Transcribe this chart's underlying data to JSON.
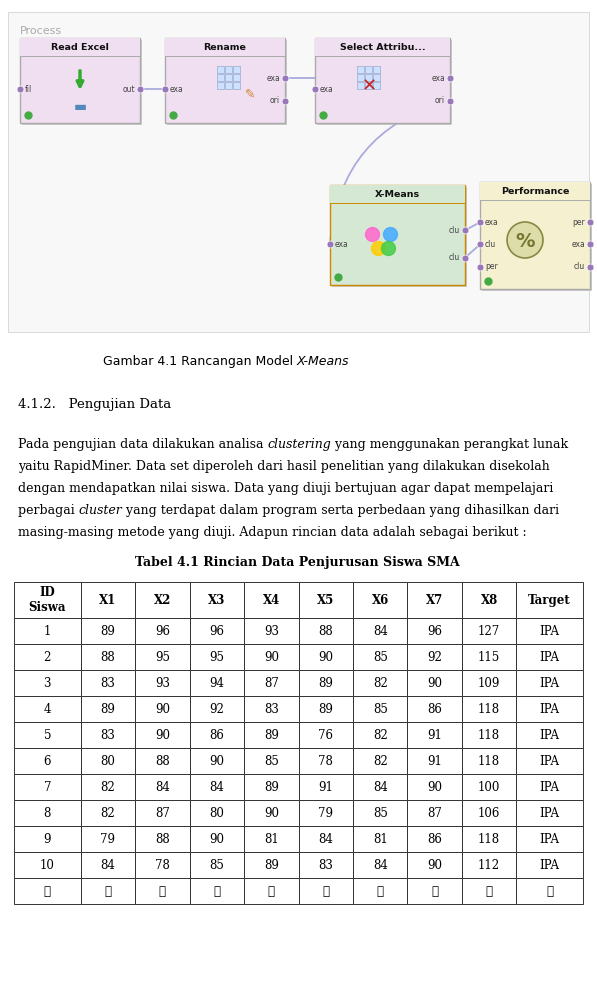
{
  "page_bg": "#ffffff",
  "process_label": "Process",
  "figure_caption_normal": "Gambar 4.1 Rancangan Model ",
  "figure_caption_italic": "X-Means",
  "section_title": "4.1.2.   Pengujian Data",
  "para_lines": [
    [
      [
        "Pada pengujian data dilakukan analisa ",
        false
      ],
      [
        "clustering",
        true
      ],
      [
        " yang menggunakan perangkat lunak",
        false
      ]
    ],
    [
      [
        "yaitu RapidMiner. Data set diperoleh dari hasil penelitian yang dilakukan disekolah",
        false
      ]
    ],
    [
      [
        "dengan mendapatkan nilai siswa. Data yang diuji bertujuan agar dapat mempelajari",
        false
      ]
    ],
    [
      [
        "perbagai ",
        false
      ],
      [
        "cluster",
        true
      ],
      [
        " yang terdapat dalam program serta perbedaan yang dihasilkan dari",
        false
      ]
    ],
    [
      [
        "masing-masing metode yang diuji. Adapun rincian data adalah sebagai berikut :",
        false
      ]
    ]
  ],
  "table_title": "Tabel 4.1 Rincian Data Penjurusan Siswa SMA",
  "table_headers": [
    "ID\nSiswa",
    "X1",
    "X2",
    "X3",
    "X4",
    "X5",
    "X6",
    "X7",
    "X8",
    "Target"
  ],
  "table_data": [
    [
      "1",
      "89",
      "96",
      "96",
      "93",
      "88",
      "84",
      "96",
      "127",
      "IPA"
    ],
    [
      "2",
      "88",
      "95",
      "95",
      "90",
      "90",
      "85",
      "92",
      "115",
      "IPA"
    ],
    [
      "3",
      "83",
      "93",
      "94",
      "87",
      "89",
      "82",
      "90",
      "109",
      "IPA"
    ],
    [
      "4",
      "89",
      "90",
      "92",
      "83",
      "89",
      "85",
      "86",
      "118",
      "IPA"
    ],
    [
      "5",
      "83",
      "90",
      "86",
      "89",
      "76",
      "82",
      "91",
      "118",
      "IPA"
    ],
    [
      "6",
      "80",
      "88",
      "90",
      "85",
      "78",
      "82",
      "91",
      "118",
      "IPA"
    ],
    [
      "7",
      "82",
      "84",
      "84",
      "89",
      "91",
      "84",
      "90",
      "100",
      "IPA"
    ],
    [
      "8",
      "82",
      "87",
      "80",
      "90",
      "79",
      "85",
      "87",
      "106",
      "IPA"
    ],
    [
      "9",
      "79",
      "88",
      "90",
      "81",
      "84",
      "81",
      "86",
      "118",
      "IPA"
    ],
    [
      "10",
      "84",
      "78",
      "85",
      "89",
      "83",
      "84",
      "90",
      "112",
      "IPA"
    ],
    [
      "⋮",
      "⋮",
      "⋮",
      "⋮",
      "⋮",
      "⋮",
      "⋮",
      "⋮",
      "⋮",
      "⋮"
    ]
  ],
  "col_weights": [
    1.1,
    0.9,
    0.9,
    0.9,
    0.9,
    0.9,
    0.9,
    0.9,
    0.9,
    1.1
  ],
  "diagram_bg": "#f0f0f0",
  "node_pink": "#f0dff0",
  "node_green": "#d4e8d4",
  "node_yellow": "#f5f0d0",
  "border_gray": "#aaaaaa",
  "border_orange": "#cc8800",
  "port_purple": "#9977bb",
  "green_dot": "#44aa44",
  "line_blue": "#aaaadd"
}
